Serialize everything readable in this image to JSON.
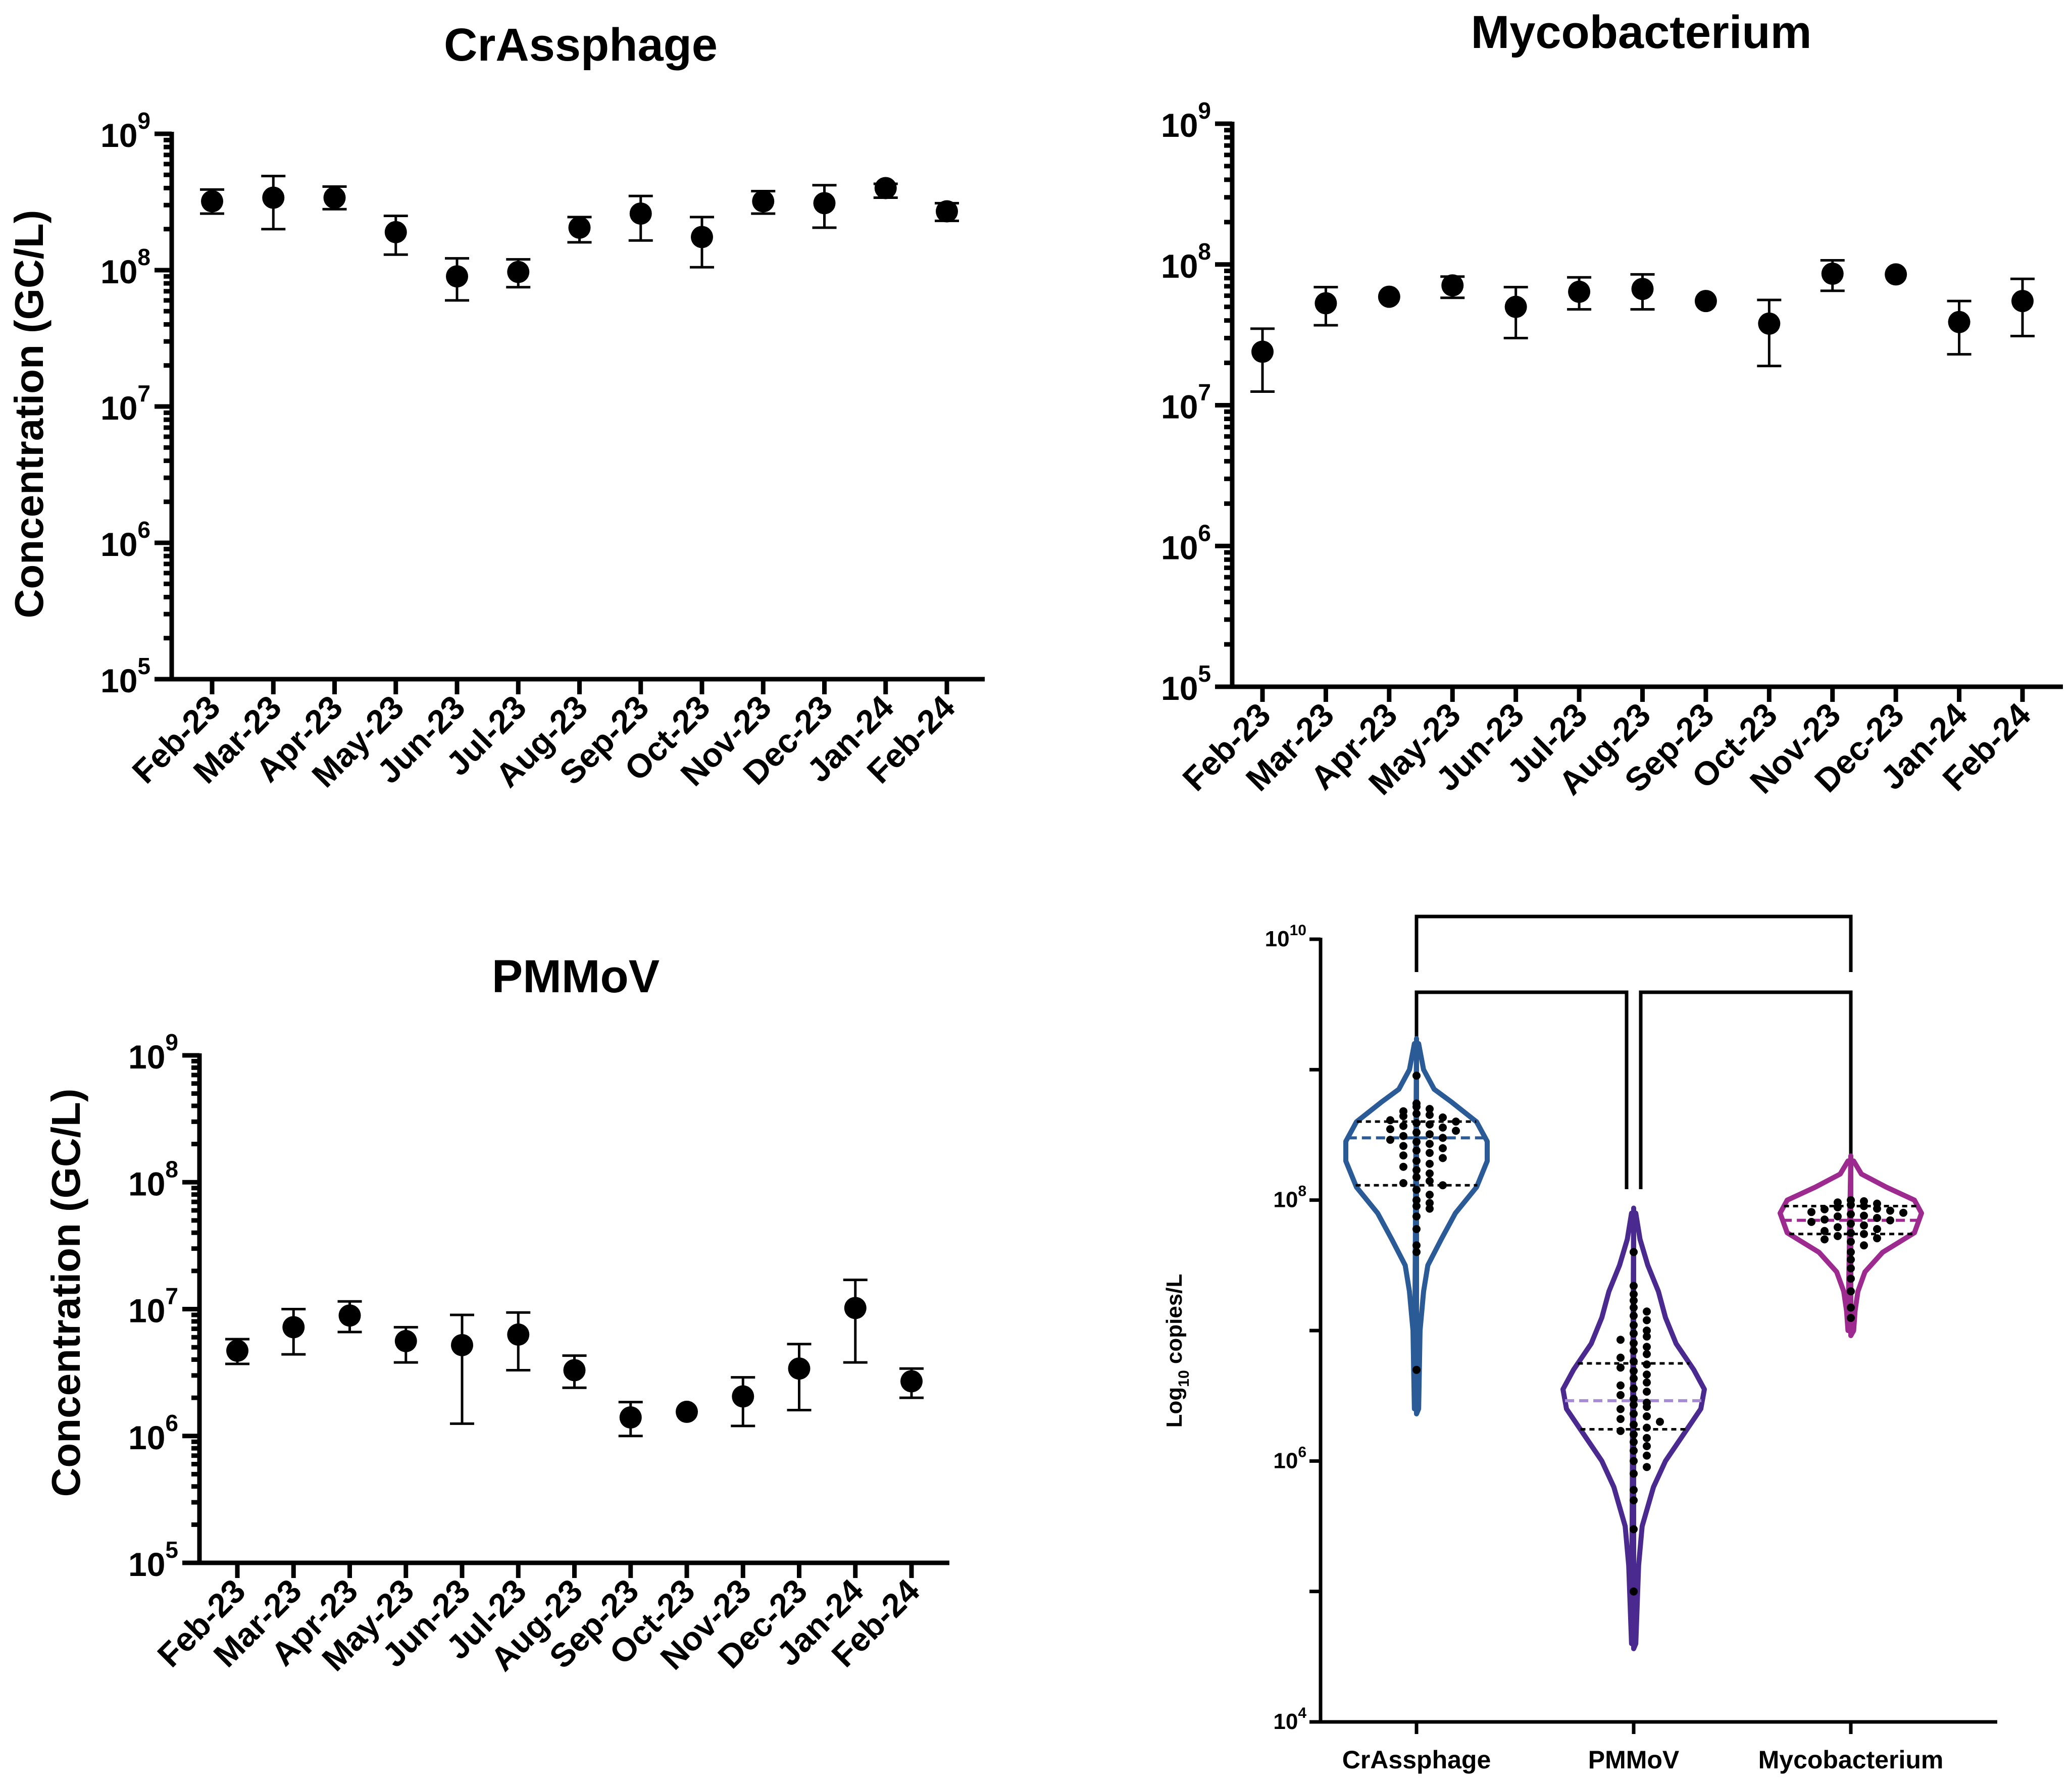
{
  "chart_data": [
    {
      "id": "crassphage",
      "type": "scatter",
      "title": "CrAssphage",
      "ylabel": "Concentration (GC/L)",
      "xlabel": "",
      "yscale": "log10",
      "ylim_exp": [
        5,
        9
      ],
      "ytick_labels": [
        {
          "base": "10",
          "exp": "5"
        },
        {
          "base": "10",
          "exp": "6"
        },
        {
          "base": "10",
          "exp": "7"
        },
        {
          "base": "10",
          "exp": "8"
        },
        {
          "base": "10",
          "exp": "9"
        }
      ],
      "categories": [
        "Feb-23",
        "Mar-23",
        "Apr-23",
        "May-23",
        "Jun-23",
        "Jul-23",
        "Aug-23",
        "Sep-23",
        "Oct-23",
        "Nov-23",
        "Dec-23",
        "Jan-24",
        "Feb-24"
      ],
      "values": [
        320000000.0,
        340000000.0,
        340000000.0,
        190000000.0,
        90000000.0,
        97000000.0,
        205000000.0,
        260000000.0,
        175000000.0,
        320000000.0,
        310000000.0,
        400000000.0,
        270000000.0
      ],
      "err_low": [
        260000000.0,
        200000000.0,
        280000000.0,
        130000000.0,
        60000000.0,
        75000000.0,
        160000000.0,
        165000000.0,
        105000000.0,
        260000000.0,
        205000000.0,
        340000000.0,
        230000000.0
      ],
      "err_high": [
        390000000.0,
        490000000.0,
        410000000.0,
        250000000.0,
        122000000.0,
        120000000.0,
        245000000.0,
        350000000.0,
        245000000.0,
        380000000.0,
        420000000.0,
        430000000.0,
        310000000.0
      ]
    },
    {
      "id": "mycobacterium",
      "type": "scatter",
      "title": "Mycobacterium",
      "ylabel": "",
      "xlabel": "",
      "yscale": "log10",
      "ylim_exp": [
        5,
        9
      ],
      "ytick_labels": [
        {
          "base": "10",
          "exp": "5"
        },
        {
          "base": "10",
          "exp": "6"
        },
        {
          "base": "10",
          "exp": "7"
        },
        {
          "base": "10",
          "exp": "8"
        },
        {
          "base": "10",
          "exp": "9"
        }
      ],
      "categories": [
        "Feb-23",
        "Mar-23",
        "Apr-23",
        "May-23",
        "Jun-23",
        "Jul-23",
        "Aug-23",
        "Sep-23",
        "Oct-23",
        "Nov-23",
        "Dec-23",
        "Jan-24",
        "Feb-24"
      ],
      "values": [
        24000000.0,
        53000000.0,
        59000000.0,
        71000000.0,
        50000000.0,
        64000000.0,
        67000000.0,
        55000000.0,
        38000000.0,
        86000000.0,
        85000000.0,
        39000000.0,
        55000000.0
      ],
      "err_low": [
        12500000.0,
        37000000.0,
        59000000.0,
        58000000.0,
        30000000.0,
        48000000.0,
        48000000.0,
        55000000.0,
        19000000.0,
        65000000.0,
        85000000.0,
        23000000.0,
        31000000.0
      ],
      "err_high": [
        35000000.0,
        69000000.0,
        59000000.0,
        82000000.0,
        69000000.0,
        81000000.0,
        85000000.0,
        55000000.0,
        56000000.0,
        107000000.0,
        85000000.0,
        55000000.0,
        79000000.0
      ]
    },
    {
      "id": "pmmov",
      "type": "scatter",
      "title": "PMMoV",
      "ylabel": "Concentration (GC/L)",
      "xlabel": "",
      "yscale": "log10",
      "ylim_exp": [
        5,
        9
      ],
      "ytick_labels": [
        {
          "base": "10",
          "exp": "5"
        },
        {
          "base": "10",
          "exp": "6"
        },
        {
          "base": "10",
          "exp": "7"
        },
        {
          "base": "10",
          "exp": "8"
        },
        {
          "base": "10",
          "exp": "9"
        }
      ],
      "categories": [
        "Feb-23",
        "Mar-23",
        "Apr-23",
        "May-23",
        "Jun-23",
        "Jul-23",
        "Aug-23",
        "Sep-23",
        "Oct-23",
        "Nov-23",
        "Dec-23",
        "Jan-24",
        "Feb-24"
      ],
      "values": [
        4700000.0,
        7200000.0,
        8900000.0,
        5600000.0,
        5200000.0,
        6300000.0,
        3300000.0,
        1400000.0,
        1550000.0,
        2050000.0,
        3400000.0,
        10200000.0,
        2700000.0
      ],
      "err_low": [
        3700000.0,
        4400000.0,
        6600000.0,
        3800000.0,
        1250000.0,
        3300000.0,
        2400000.0,
        1000000.0,
        1550000.0,
        1200000.0,
        1600000.0,
        3800000.0,
        2000000.0
      ],
      "err_high": [
        5800000.0,
        10000000.0,
        11500000.0,
        7200000.0,
        9000000.0,
        9400000.0,
        4300000.0,
        1850000.0,
        1550000.0,
        2900000.0,
        5300000.0,
        17000000.0,
        3400000.0
      ]
    },
    {
      "id": "violin",
      "type": "violin",
      "ylabel": {
        "prefix": "Log",
        "sub": "10",
        "suffix": " copies/L"
      },
      "yscale": "log10",
      "ylim_exp": [
        4,
        10
      ],
      "ytick_labels": [
        {
          "base": "10",
          "exp": "4"
        },
        {
          "base": "10",
          "exp": "6"
        },
        {
          "base": "10",
          "exp": "8"
        },
        {
          "base": "10",
          "exp": "10"
        }
      ],
      "categories": [
        "CrAssphage",
        "PMMoV",
        "Mycobacterium"
      ],
      "series": [
        {
          "name": "CrAssphage",
          "color": "#2a5b96",
          "median": 300000000.0,
          "quartiles": [
            130000000.0,
            400000000.0
          ],
          "points": [
            550000000.0,
            520000000.0,
            500000000.0,
            480000000.0,
            460000000.0,
            450000000.0,
            440000000.0,
            430000000.0,
            410000000.0,
            400000000.0,
            390000000.0,
            380000000.0,
            370000000.0,
            360000000.0,
            350000000.0,
            340000000.0,
            330000000.0,
            320000000.0,
            310000000.0,
            300000000.0,
            290000000.0,
            280000000.0,
            270000000.0,
            260000000.0,
            250000000.0,
            240000000.0,
            230000000.0,
            220000000.0,
            210000000.0,
            200000000.0,
            190000000.0,
            180000000.0,
            170000000.0,
            160000000.0,
            150000000.0,
            140000000.0,
            135000000.0,
            130000000.0,
            120000000.0,
            110000000.0,
            100000000.0,
            95000000.0,
            90000000.0,
            86000000.0,
            75000000.0,
            60000000.0,
            45000000.0,
            40000000.0,
            900000000.0,
            5000000.0
          ],
          "shape": [
            [
              6.4,
              0.03
            ],
            [
              7.0,
              0.05
            ],
            [
              7.3,
              0.1
            ],
            [
              7.5,
              0.16
            ],
            [
              7.7,
              0.35
            ],
            [
              7.9,
              0.55
            ],
            [
              8.1,
              0.85
            ],
            [
              8.3,
              1.0
            ],
            [
              8.45,
              1.0
            ],
            [
              8.6,
              0.85
            ],
            [
              8.75,
              0.5
            ],
            [
              8.85,
              0.25
            ],
            [
              9.0,
              0.1
            ],
            [
              9.2,
              0.03
            ]
          ]
        },
        {
          "name": "PMMoV",
          "color": "#4a2a8e",
          "median": 2900000.0,
          "median_color": "#a58ad6",
          "quartiles": [
            1750000.0,
            5600000.0
          ],
          "points": [
            22000000.0,
            19000000.0,
            17000000.0,
            15000000.0,
            14000000.0,
            13000000.0,
            12000000.0,
            11000000.0,
            10000000.0,
            9500000.0,
            9000000.0,
            8500000.0,
            8000000.0,
            7500000.0,
            7000000.0,
            6600000.0,
            6200000.0,
            5800000.0,
            5500000.0,
            5200000.0,
            4900000.0,
            4600000.0,
            4300000.0,
            4000000.0,
            3800000.0,
            3600000.0,
            3400000.0,
            3200000.0,
            3000000.0,
            2800000.0,
            2700000.0,
            2600000.0,
            2500000.0,
            2300000.0,
            2200000.0,
            2100000.0,
            2000000.0,
            1900000.0,
            1800000.0,
            1700000.0,
            1600000.0,
            1500000.0,
            1400000.0,
            1300000.0,
            1200000.0,
            1100000.0,
            1000000.0,
            900000.0,
            800000.0,
            600000.0,
            500000.0,
            40000000.0,
            300000.0,
            100000.0
          ],
          "shape": [
            [
              4.6,
              0.03
            ],
            [
              4.9,
              0.05
            ],
            [
              5.2,
              0.07
            ],
            [
              5.5,
              0.12
            ],
            [
              5.8,
              0.28
            ],
            [
              6.0,
              0.45
            ],
            [
              6.2,
              0.7
            ],
            [
              6.4,
              0.95
            ],
            [
              6.55,
              1.0
            ],
            [
              6.7,
              0.85
            ],
            [
              6.9,
              0.6
            ],
            [
              7.1,
              0.45
            ],
            [
              7.3,
              0.35
            ],
            [
              7.5,
              0.2
            ],
            [
              7.7,
              0.09
            ],
            [
              7.9,
              0.03
            ]
          ]
        },
        {
          "name": "Mycobacterium",
          "color": "#9c2a8f",
          "median": 70000000.0,
          "quartiles": [
            55000000.0,
            90000000.0
          ],
          "points": [
            100000000.0,
            98000000.0,
            96000000.0,
            94000000.0,
            92000000.0,
            90000000.0,
            88000000.0,
            86000000.0,
            85000000.0,
            83000000.0,
            81000000.0,
            80000000.0,
            78000000.0,
            76000000.0,
            75000000.0,
            73000000.0,
            71000000.0,
            70000000.0,
            68000000.0,
            66000000.0,
            64000000.0,
            62000000.0,
            60000000.0,
            58000000.0,
            56000000.0,
            55000000.0,
            53000000.0,
            51000000.0,
            50000000.0,
            48000000.0,
            45000000.0,
            40000000.0,
            35000000.0,
            30000000.0,
            25000000.0,
            20000000.0,
            15000000.0,
            12500000.0
          ],
          "shape": [
            [
              7.0,
              0.04
            ],
            [
              7.15,
              0.06
            ],
            [
              7.3,
              0.1
            ],
            [
              7.45,
              0.2
            ],
            [
              7.6,
              0.45
            ],
            [
              7.75,
              0.9
            ],
            [
              7.9,
              1.0
            ],
            [
              8.0,
              0.9
            ],
            [
              8.1,
              0.5
            ],
            [
              8.2,
              0.15
            ],
            [
              8.3,
              0.04
            ]
          ]
        }
      ],
      "comparisons": [
        {
          "from": "CrAssphage",
          "to": "Mycobacterium"
        },
        {
          "from": "CrAssphage",
          "to": "PMMoV"
        },
        {
          "from": "PMMoV",
          "to": "Mycobacterium"
        }
      ]
    }
  ]
}
